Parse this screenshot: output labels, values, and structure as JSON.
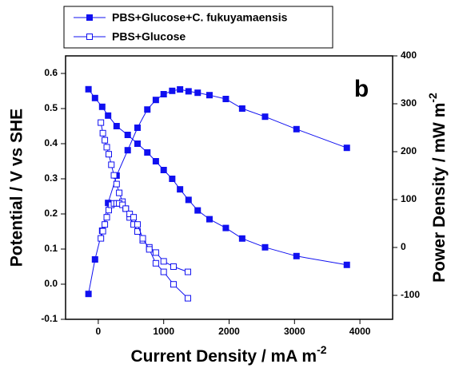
{
  "chart_data": {
    "type": "line",
    "x_label": "Current Density / mA m",
    "x_label_sup": "-2",
    "y_label": "Potential / V vs SHE",
    "y2_label": "Power Density / mW m",
    "y2_label_sup": "-2",
    "annotation": "b",
    "xlim": [
      -500,
      4500
    ],
    "xticks": [
      0,
      1000,
      2000,
      3000,
      4000
    ],
    "ylim": [
      -0.1,
      0.65
    ],
    "yticks": [
      -0.1,
      {
        "value": 0,
        "label": "0.0"
      },
      0.1,
      0.2,
      0.3,
      0.4,
      0.5,
      0.6
    ],
    "y2lim": [
      -150,
      400
    ],
    "y2ticks": [
      -100,
      0,
      100,
      200,
      300,
      400
    ],
    "legend_position": "top-left",
    "series": [
      {
        "name": "PBS+Glucose+C. fukuyamaensis",
        "color": "#1010f0",
        "marker": "filled",
        "x": [
          -150,
          -50,
          60,
          150,
          280,
          450,
          600,
          750,
          880,
          1000,
          1130,
          1250,
          1380,
          1520,
          1700,
          1950,
          2200,
          2550,
          3030,
          3800
        ],
        "values": [
          0.555,
          0.53,
          0.505,
          0.48,
          0.45,
          0.425,
          0.4,
          0.375,
          0.35,
          0.325,
          0.3,
          0.27,
          0.24,
          0.21,
          0.185,
          0.16,
          0.13,
          0.105,
          0.08,
          0.055
        ]
      },
      {
        "name": "PBS+Glucose+C. fukuyamaensis",
        "color": "#1010f0",
        "marker": "filled",
        "axis": "y2",
        "x": [
          -150,
          -50,
          60,
          150,
          280,
          450,
          600,
          750,
          880,
          1000,
          1130,
          1250,
          1380,
          1520,
          1700,
          1950,
          2200,
          2550,
          3030,
          3800
        ],
        "values": [
          -97,
          -25,
          35,
          93,
          150,
          203,
          250,
          288,
          308,
          320,
          327,
          330,
          326,
          323,
          318,
          310,
          290,
          273,
          247,
          208
        ]
      },
      {
        "name": "PBS+Glucose",
        "color": "#1010f0",
        "marker": "open",
        "x": [
          40,
          70,
          100,
          130,
          160,
          200,
          240,
          280,
          320,
          370,
          420,
          480,
          540,
          600,
          680,
          780,
          880,
          1000,
          1150,
          1370
        ],
        "values": [
          0.46,
          0.43,
          0.41,
          0.39,
          0.37,
          0.34,
          0.31,
          0.285,
          0.26,
          0.235,
          0.215,
          0.19,
          0.17,
          0.15,
          0.125,
          0.105,
          0.09,
          0.065,
          0.05,
          0.035
        ]
      },
      {
        "name": "PBS+Glucose",
        "color": "#1010f0",
        "marker": "open",
        "axis": "y2",
        "x": [
          40,
          70,
          100,
          130,
          160,
          200,
          240,
          280,
          320,
          370,
          420,
          480,
          540,
          600,
          680,
          780,
          880,
          1000,
          1150,
          1370
        ],
        "values": [
          19,
          34,
          48,
          63,
          78,
          89,
          92,
          92,
          92,
          89,
          81,
          70,
          63,
          48,
          19,
          -4,
          -33,
          -51,
          -77,
          -106
        ]
      }
    ]
  }
}
